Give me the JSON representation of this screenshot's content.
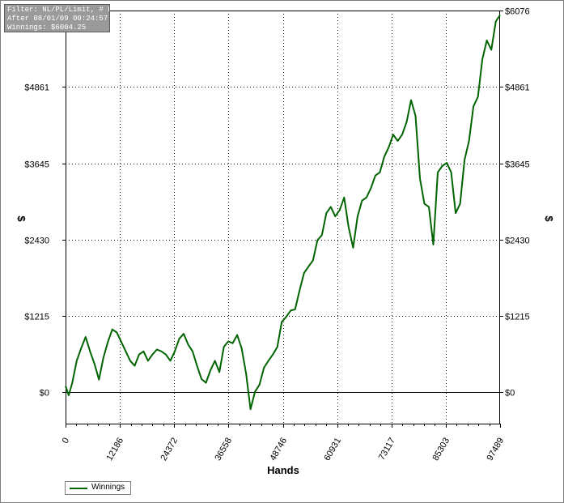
{
  "colors": {
    "series": "#006400",
    "grid": "#000000",
    "info_bg": "#9a9a9a"
  },
  "info": {
    "line1": "Filter: NL/PL/Limit, # Players",
    "line2": "After 08/01/09 00:24:57",
    "line3": "Winnings: $6004.25"
  },
  "chart_data": {
    "type": "line",
    "title": "",
    "xlabel": "Hands",
    "ylabel": "$",
    "ylabel_right": "$",
    "xlim": [
      0,
      97469
    ],
    "ylim": [
      -500,
      6076
    ],
    "x_ticks": [
      "0",
      "12186",
      "24372",
      "36558",
      "48746",
      "60931",
      "73117",
      "85303",
      "97489"
    ],
    "y_ticks": [
      "$0",
      "$1215",
      "$2430",
      "$3645",
      "$4861",
      "$6076"
    ],
    "grid": true,
    "legend_position": "bottom-left",
    "series": [
      {
        "name": "Winnings",
        "x": [
          0,
          700,
          1500,
          2500,
          3500,
          4500,
          5500,
          6500,
          7500,
          8500,
          9500,
          10500,
          11500,
          12500,
          13500,
          14500,
          15500,
          16500,
          17500,
          18500,
          19500,
          20500,
          21500,
          22500,
          23500,
          24500,
          25500,
          26500,
          27500,
          28500,
          29500,
          30500,
          31500,
          32500,
          33500,
          34500,
          35500,
          36500,
          37500,
          38500,
          39500,
          40500,
          41500,
          42500,
          43500,
          44500,
          45500,
          46500,
          47500,
          48500,
          49500,
          50500,
          51500,
          52500,
          53500,
          54500,
          55500,
          56500,
          57500,
          58500,
          59500,
          60500,
          61500,
          62500,
          63500,
          64500,
          65500,
          66500,
          67500,
          68500,
          69500,
          70500,
          71500,
          72500,
          73500,
          74500,
          75500,
          76500,
          77500,
          78500,
          79500,
          80500,
          81500,
          82500,
          83500,
          84500,
          85500,
          86500,
          87500,
          88500,
          89500,
          90500,
          91500,
          92500,
          93500,
          94500,
          95500,
          96500,
          97469
        ],
        "values": [
          100,
          -50,
          150,
          500,
          700,
          880,
          650,
          450,
          200,
          550,
          800,
          1000,
          950,
          800,
          650,
          500,
          420,
          600,
          650,
          500,
          600,
          680,
          650,
          600,
          500,
          650,
          850,
          930,
          760,
          650,
          420,
          210,
          150,
          350,
          500,
          320,
          720,
          810,
          780,
          910,
          700,
          300,
          -270,
          10,
          120,
          390,
          500,
          600,
          720,
          1120,
          1200,
          1300,
          1320,
          1620,
          1900,
          2000,
          2100,
          2420,
          2500,
          2850,
          2950,
          2800,
          2900,
          3100,
          2630,
          2300,
          2800,
          3050,
          3100,
          3250,
          3450,
          3500,
          3750,
          3900,
          4100,
          4000,
          4100,
          4300,
          4650,
          4400,
          3400,
          3000,
          2950,
          2350,
          3500,
          3600,
          3650,
          3500,
          2850,
          3000,
          3700,
          4000,
          4550,
          4700,
          5300,
          5600,
          5450,
          5900,
          6004
        ]
      }
    ]
  },
  "legend": {
    "label": "Winnings"
  }
}
